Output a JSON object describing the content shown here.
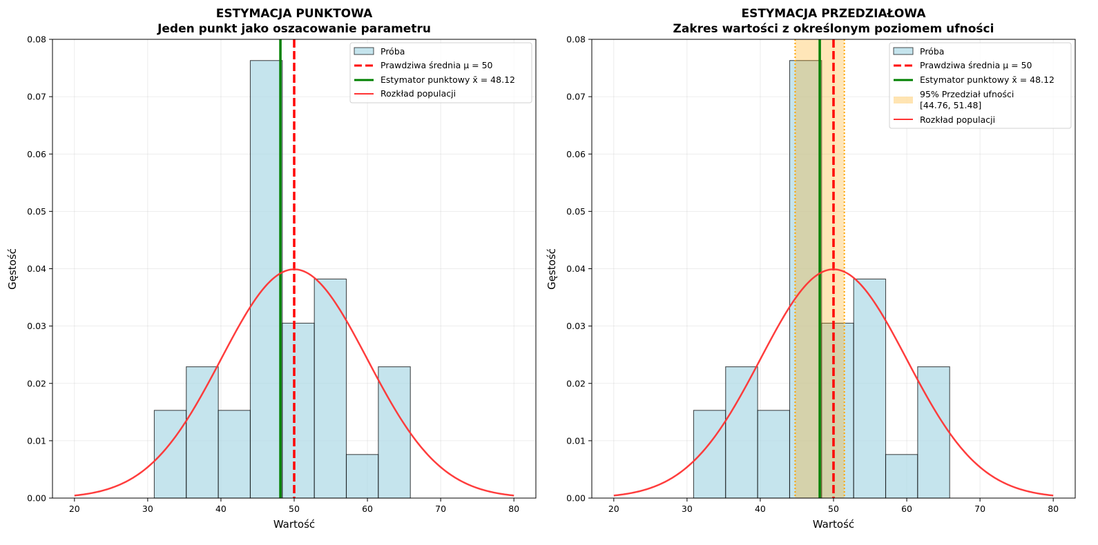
{
  "chart_data": [
    {
      "type": "bar",
      "title": "ESTYMACJA PUNKTOWA",
      "subtitle": "Jeden punkt jako oszacowanie parametru",
      "xlabel": "Wartość",
      "ylabel": "Gęstość",
      "xlim": [
        17,
        83
      ],
      "ylim": [
        0,
        0.08
      ],
      "xticks": [
        20,
        30,
        40,
        50,
        60,
        70,
        80
      ],
      "xtick_labels": [
        "20",
        "30",
        "40",
        "50",
        "60",
        "70",
        "80"
      ],
      "yticks": [
        0,
        0.01,
        0.02,
        0.03,
        0.04,
        0.05,
        0.06,
        0.07,
        0.08
      ],
      "ytick_labels": [
        "0.00",
        "0.01",
        "0.02",
        "0.03",
        "0.04",
        "0.05",
        "0.06",
        "0.07",
        "0.08"
      ],
      "grid": true,
      "legend_position": "top-right",
      "histogram": {
        "name": "Próba",
        "bin_edges": [
          30.9,
          35.27,
          39.64,
          44.01,
          48.38,
          52.75,
          57.12,
          61.49,
          65.86
        ],
        "density": [
          0.0153,
          0.0229,
          0.0153,
          0.0763,
          0.0305,
          0.0382,
          0.0076,
          0.0229
        ],
        "color": "#add8e6",
        "edge_color": "#000000"
      },
      "true_mean": {
        "name": "Prawdziwa średnia μ = 50",
        "x": 50,
        "color": "#ff0000",
        "style": "dashed"
      },
      "point_estimate": {
        "name": "Estymator punktowy x̄ = 48.12",
        "x": 48.12,
        "color": "#008000",
        "style": "solid"
      },
      "population_curve": {
        "name": "Rozkład populacji",
        "mean": 50,
        "sd": 10,
        "x_range": [
          20,
          80
        ],
        "color": "#ff3333"
      },
      "legend": [
        "Próba",
        "Prawdziwa średnia μ = 50",
        "Estymator punktowy x̄ = 48.12",
        "Rozkład populacji"
      ]
    },
    {
      "type": "bar",
      "title": "ESTYMACJA PRZEDZIAŁOWA",
      "subtitle": "Zakres wartości z określonym poziomem ufności",
      "xlabel": "Wartość",
      "ylabel": "Gęstość",
      "xlim": [
        17,
        83
      ],
      "ylim": [
        0,
        0.08
      ],
      "xticks": [
        20,
        30,
        40,
        50,
        60,
        70,
        80
      ],
      "xtick_labels": [
        "20",
        "30",
        "40",
        "50",
        "60",
        "70",
        "80"
      ],
      "yticks": [
        0,
        0.01,
        0.02,
        0.03,
        0.04,
        0.05,
        0.06,
        0.07,
        0.08
      ],
      "ytick_labels": [
        "0.00",
        "0.01",
        "0.02",
        "0.03",
        "0.04",
        "0.05",
        "0.06",
        "0.07",
        "0.08"
      ],
      "grid": true,
      "legend_position": "top-right",
      "histogram": {
        "name": "Próba",
        "bin_edges": [
          30.9,
          35.27,
          39.64,
          44.01,
          48.38,
          52.75,
          57.12,
          61.49,
          65.86
        ],
        "density": [
          0.0153,
          0.0229,
          0.0153,
          0.0763,
          0.0305,
          0.0382,
          0.0076,
          0.0229
        ],
        "color": "#add8e6",
        "edge_color": "#000000"
      },
      "true_mean": {
        "name": "Prawdziwa średnia μ = 50",
        "x": 50,
        "color": "#ff0000",
        "style": "dashed"
      },
      "point_estimate": {
        "name": "Estymator punktowy x̄ = 48.12",
        "x": 48.12,
        "color": "#008000",
        "style": "solid"
      },
      "confidence_interval": {
        "name": "95% Przedział ufności",
        "bounds_label": "[44.76, 51.48]",
        "lower": 44.76,
        "upper": 51.48,
        "color": "#ffa500"
      },
      "population_curve": {
        "name": "Rozkład populacji",
        "mean": 50,
        "sd": 10,
        "x_range": [
          20,
          80
        ],
        "color": "#ff3333"
      },
      "legend": [
        "Próba",
        "Prawdziwa średnia μ = 50",
        "Estymator punktowy x̄ = 48.12",
        "95% Przedział ufności",
        "[44.76, 51.48]",
        "Rozkład populacji"
      ]
    }
  ]
}
